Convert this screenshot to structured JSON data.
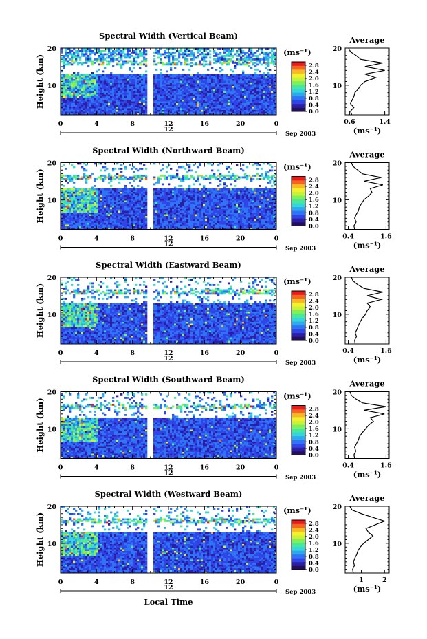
{
  "figure": {
    "xlabel": "Local Time",
    "ylabel": "Height (km)",
    "date_label": "Sep 2003",
    "day_label": "12",
    "colorbar_unit": "(ms⁻¹)",
    "avg_title": "Average",
    "avg_xlabel": "(ms⁻¹)"
  },
  "colors": {
    "scale": [
      "#24105a",
      "#2d1fa5",
      "#2f45e8",
      "#2f74f4",
      "#2fa8f0",
      "#35d6d8",
      "#48e89a",
      "#7ef05a",
      "#c8f23a",
      "#f6f02c",
      "#f8b824",
      "#f46620",
      "#e81c1c"
    ]
  },
  "chart_data": [
    {
      "type": "heatmap",
      "title": "Spectral Width (Vertical Beam)",
      "x_ticks": [
        "0",
        "4",
        "8",
        "12",
        "16",
        "20",
        "0"
      ],
      "y_ticks": [
        "20",
        "10"
      ],
      "colorbar_ticks": [
        "2.8",
        "2.4",
        "2.0",
        "1.6",
        "1.2",
        "0.8",
        "0.4",
        "0.0"
      ],
      "avg_x_ticks": [
        "0.6",
        "1.4"
      ],
      "avg_y_ticks": [
        "20",
        "10"
      ],
      "xlim": [
        0,
        24
      ],
      "ylim": [
        2,
        20
      ],
      "clim": [
        0,
        3.0
      ],
      "gap": [
        9.6,
        10.1
      ],
      "avg_xlim": [
        0.5,
        1.5
      ],
      "average_profile": {
        "height": [
          2,
          3,
          4,
          5,
          6,
          7,
          8,
          9,
          10,
          11,
          12,
          13,
          14,
          15,
          16,
          17,
          18,
          19,
          20
        ],
        "width": [
          0.65,
          0.62,
          0.7,
          0.62,
          0.66,
          0.7,
          0.72,
          0.8,
          0.85,
          0.95,
          1.2,
          0.95,
          1.4,
          0.95,
          1.35,
          0.85,
          0.75,
          0.62,
          0.58
        ]
      }
    },
    {
      "type": "heatmap",
      "title": "Spectral Width (Northward Beam)",
      "x_ticks": [
        "0",
        "4",
        "8",
        "12",
        "16",
        "20",
        "0"
      ],
      "y_ticks": [
        "20",
        "10"
      ],
      "colorbar_ticks": [
        "2.8",
        "2.4",
        "2.0",
        "1.6",
        "1.2",
        "0.8",
        "0.4",
        "0.0"
      ],
      "avg_x_ticks": [
        "0.4",
        "1.6"
      ],
      "avg_y_ticks": [
        "20",
        "10"
      ],
      "xlim": [
        0,
        24
      ],
      "ylim": [
        2,
        20
      ],
      "clim": [
        0,
        3.0
      ],
      "gap": [
        9.6,
        10.1
      ],
      "avg_xlim": [
        0.3,
        1.7
      ],
      "average_profile": {
        "height": [
          2,
          3,
          4,
          5,
          6,
          7,
          8,
          9,
          10,
          11,
          12,
          13,
          14,
          15,
          16,
          17,
          18,
          19,
          20
        ],
        "width": [
          0.6,
          0.58,
          0.65,
          0.6,
          0.65,
          0.72,
          0.75,
          0.82,
          0.9,
          1.05,
          1.15,
          1.1,
          1.5,
          0.9,
          1.45,
          0.85,
          0.7,
          0.55,
          0.5
        ]
      }
    },
    {
      "type": "heatmap",
      "title": "Spectral Width (Eastward Beam)",
      "x_ticks": [
        "0",
        "4",
        "8",
        "12",
        "16",
        "20",
        "0"
      ],
      "y_ticks": [
        "20",
        "10"
      ],
      "colorbar_ticks": [
        "2.8",
        "2.4",
        "2.0",
        "1.6",
        "1.2",
        "0.8",
        "0.4",
        "0.0"
      ],
      "avg_x_ticks": [
        "0.4",
        "1.6"
      ],
      "avg_y_ticks": [
        "20",
        "10"
      ],
      "xlim": [
        0,
        24
      ],
      "ylim": [
        2,
        20
      ],
      "clim": [
        0,
        3.0
      ],
      "gap": [
        9.6,
        10.1
      ],
      "avg_xlim": [
        0.3,
        1.7
      ],
      "average_profile": {
        "height": [
          2,
          3,
          4,
          5,
          6,
          7,
          8,
          9,
          10,
          11,
          12,
          13,
          14,
          15,
          16,
          17,
          18,
          19,
          20
        ],
        "width": [
          0.62,
          0.6,
          0.66,
          0.62,
          0.68,
          0.72,
          0.78,
          0.85,
          0.95,
          1.0,
          1.1,
          1.0,
          1.45,
          1.0,
          1.5,
          0.9,
          0.7,
          0.55,
          0.5
        ]
      }
    },
    {
      "type": "heatmap",
      "title": "Spectral Width (Southward Beam)",
      "x_ticks": [
        "0",
        "4",
        "8",
        "12",
        "16",
        "20",
        "0"
      ],
      "y_ticks": [
        "20",
        "10"
      ],
      "colorbar_ticks": [
        "2.8",
        "2.4",
        "2.0",
        "1.6",
        "1.2",
        "0.8",
        "0.4",
        "0.0"
      ],
      "avg_x_ticks": [
        "0.4",
        "1.6"
      ],
      "avg_y_ticks": [
        "20",
        "10"
      ],
      "xlim": [
        0,
        24
      ],
      "ylim": [
        2,
        20
      ],
      "clim": [
        0,
        3.0
      ],
      "gap": [
        9.6,
        10.1
      ],
      "avg_xlim": [
        0.3,
        1.7
      ],
      "average_profile": {
        "height": [
          2,
          3,
          4,
          5,
          6,
          7,
          8,
          9,
          10,
          11,
          12,
          13,
          14,
          15,
          16,
          17,
          18,
          19,
          20
        ],
        "width": [
          0.6,
          0.58,
          0.64,
          0.6,
          0.66,
          0.72,
          0.76,
          0.85,
          0.95,
          1.05,
          1.2,
          1.1,
          1.55,
          0.9,
          1.6,
          0.85,
          0.65,
          0.5,
          0.45
        ]
      }
    },
    {
      "type": "heatmap",
      "title": "Spectral Width (Westward Beam)",
      "x_ticks": [
        "0",
        "4",
        "8",
        "12",
        "16",
        "20",
        "0"
      ],
      "y_ticks": [
        "20",
        "10"
      ],
      "colorbar_ticks": [
        "2.8",
        "2.4",
        "2.0",
        "1.6",
        "1.2",
        "0.8",
        "0.4",
        "0.0"
      ],
      "avg_x_ticks": [
        "1",
        "2"
      ],
      "avg_y_ticks": [
        "20",
        "10"
      ],
      "xlim": [
        0,
        24
      ],
      "ylim": [
        2,
        20
      ],
      "clim": [
        0,
        3.0
      ],
      "gap": [
        9.6,
        10.1
      ],
      "avg_xlim": [
        0.3,
        2.2
      ],
      "average_profile": {
        "height": [
          2,
          3,
          4,
          5,
          6,
          7,
          8,
          9,
          10,
          11,
          12,
          13,
          14,
          15,
          16,
          17,
          18,
          19,
          20
        ],
        "width": [
          0.65,
          0.62,
          0.7,
          0.66,
          0.72,
          0.8,
          0.85,
          0.95,
          1.1,
          1.3,
          1.5,
          1.3,
          1.2,
          1.6,
          2.0,
          1.5,
          1.0,
          0.6,
          0.5
        ]
      }
    }
  ]
}
